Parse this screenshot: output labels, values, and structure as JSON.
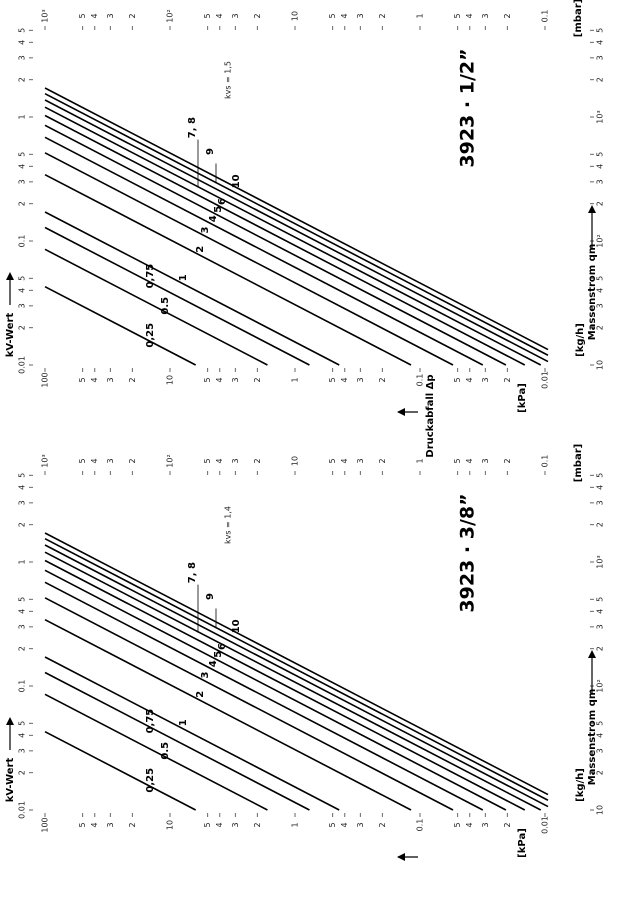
{
  "chart_data": [
    {
      "type": "nomogram",
      "title": "3923 · 1/2”",
      "subtitle": "kvs = 1,5",
      "values": [
        0.25,
        0.5,
        0.75,
        1,
        2,
        3,
        4,
        5,
        6,
        7,
        8,
        9,
        10
      ],
      "value_labels": [
        "0,25",
        "0.5",
        "0,75",
        "1",
        "2",
        "3",
        "4",
        "5",
        "6",
        "7, 8",
        null,
        "9",
        "10"
      ],
      "kv_axis": {
        "label": "kV-Wert",
        "ticks": [
          0.01,
          {
            "value": 0.02,
            "label": "2"
          },
          {
            "value": 0.03,
            "label": "3"
          },
          {
            "value": 0.04,
            "label": "4"
          },
          {
            "value": 0.05,
            "label": "5"
          },
          0.1,
          {
            "value": 0.2,
            "label": "2"
          },
          {
            "value": 0.3,
            "label": "3"
          },
          {
            "value": 0.4,
            "label": "4"
          },
          {
            "value": 0.5,
            "label": "5"
          },
          1,
          2,
          3,
          4,
          5
        ]
      },
      "mass_axis": {
        "unit": "[kg/h]",
        "label": "Massenstrom qm",
        "ticks": [
          10,
          {
            "value": 20,
            "label": "2"
          },
          {
            "value": 30,
            "label": "3"
          },
          {
            "value": 40,
            "label": "4"
          },
          {
            "value": 50,
            "label": "5"
          },
          {
            "value": 100,
            "label": "10²"
          },
          {
            "value": 200,
            "label": "2"
          },
          {
            "value": 300,
            "label": "3"
          },
          {
            "value": 400,
            "label": "4"
          },
          {
            "value": 500,
            "label": "5"
          },
          {
            "value": 1000,
            "label": "10³"
          },
          {
            "value": 2000,
            "label": "2"
          },
          {
            "value": 3000,
            "label": "3"
          },
          {
            "value": 4000,
            "label": "4"
          },
          {
            "value": 5000,
            "label": "5"
          }
        ]
      },
      "dp_axis": {
        "unit": "[kPa]",
        "label": "Druckabfall Δp",
        "ticks": [
          100,
          {
            "value": 50,
            "label": "5"
          },
          {
            "value": 40,
            "label": "4"
          },
          {
            "value": 30,
            "label": "3"
          },
          {
            "value": 20,
            "label": "2"
          },
          10,
          5,
          4,
          3,
          2,
          1,
          {
            "value": 0.5,
            "label": "5"
          },
          {
            "value": 0.4,
            "label": "4"
          },
          {
            "value": 0.3,
            "label": "3"
          },
          {
            "value": 0.2,
            "label": "2"
          },
          0.1,
          {
            "value": 0.05,
            "label": "5"
          },
          {
            "value": 0.04,
            "label": "4"
          },
          {
            "value": 0.03,
            "label": "3"
          },
          {
            "value": 0.02,
            "label": "2"
          },
          0.01
        ]
      },
      "dp_mbar_axis": {
        "unit": "[mbar]",
        "ticks": [
          {
            "value": 1000,
            "label": "10³"
          },
          {
            "value": 500,
            "label": "5"
          },
          {
            "value": 400,
            "label": "4"
          },
          {
            "value": 300,
            "label": "3"
          },
          {
            "value": 200,
            "label": "2"
          },
          {
            "value": 100,
            "label": "10²"
          },
          {
            "value": 50,
            "label": "5"
          },
          {
            "value": 40,
            "label": "4"
          },
          {
            "value": 30,
            "label": "3"
          },
          {
            "value": 20,
            "label": "2"
          },
          10,
          5,
          4,
          3,
          2,
          1,
          {
            "value": 0.5,
            "label": "5"
          },
          {
            "value": 0.4,
            "label": "4"
          },
          {
            "value": 0.3,
            "label": "3"
          },
          {
            "value": 0.2,
            "label": "2"
          },
          0.1
        ]
      }
    },
    {
      "type": "nomogram",
      "title": "3923 · 3/8”",
      "subtitle": "kvs = 1,4",
      "values": [
        0.25,
        0.5,
        0.75,
        1,
        2,
        3,
        4,
        5,
        6,
        7,
        8,
        9,
        10
      ],
      "value_labels": [
        "0,25",
        "0.5",
        "0,75",
        "1",
        "2",
        "3",
        "4",
        "5",
        "6",
        "7, 8",
        null,
        "9",
        "10"
      ],
      "kv_axis": {
        "label": "kV-Wert",
        "ticks": [
          0.01,
          {
            "value": 0.02,
            "label": "2"
          },
          {
            "value": 0.03,
            "label": "3"
          },
          {
            "value": 0.04,
            "label": "4"
          },
          {
            "value": 0.05,
            "label": "5"
          },
          0.1,
          {
            "value": 0.2,
            "label": "2"
          },
          {
            "value": 0.3,
            "label": "3"
          },
          {
            "value": 0.4,
            "label": "4"
          },
          {
            "value": 0.5,
            "label": "5"
          },
          1,
          2,
          3,
          4,
          5
        ]
      },
      "mass_axis": {
        "unit": "[kg/h]",
        "label": "Massenstrom qm",
        "ticks": [
          10,
          {
            "value": 20,
            "label": "2"
          },
          {
            "value": 30,
            "label": "3"
          },
          {
            "value": 40,
            "label": "4"
          },
          {
            "value": 50,
            "label": "5"
          },
          {
            "value": 100,
            "label": "10²"
          },
          {
            "value": 200,
            "label": "2"
          },
          {
            "value": 300,
            "label": "3"
          },
          {
            "value": 400,
            "label": "4"
          },
          {
            "value": 500,
            "label": "5"
          },
          {
            "value": 1000,
            "label": "10³"
          },
          {
            "value": 2000,
            "label": "2"
          },
          {
            "value": 3000,
            "label": "3"
          },
          {
            "value": 4000,
            "label": "4"
          },
          {
            "value": 5000,
            "label": "5"
          }
        ]
      },
      "dp_axis": {
        "unit": "[kPa]",
        "ticks": [
          100,
          {
            "value": 50,
            "label": "5"
          },
          {
            "value": 40,
            "label": "4"
          },
          {
            "value": 30,
            "label": "3"
          },
          {
            "value": 20,
            "label": "2"
          },
          10,
          5,
          4,
          3,
          2,
          1,
          {
            "value": 0.5,
            "label": "5"
          },
          {
            "value": 0.4,
            "label": "4"
          },
          {
            "value": 0.3,
            "label": "3"
          },
          {
            "value": 0.2,
            "label": "2"
          },
          0.1,
          {
            "value": 0.05,
            "label": "5"
          },
          {
            "value": 0.04,
            "label": "4"
          },
          {
            "value": 0.03,
            "label": "3"
          },
          {
            "value": 0.02,
            "label": "2"
          },
          0.01
        ]
      },
      "dp_mbar_axis": {
        "unit": "[mbar]",
        "ticks": [
          {
            "value": 1000,
            "label": "10³"
          },
          {
            "value": 500,
            "label": "5"
          },
          {
            "value": 400,
            "label": "4"
          },
          {
            "value": 300,
            "label": "3"
          },
          {
            "value": 200,
            "label": "2"
          },
          {
            "value": 100,
            "label": "10²"
          },
          {
            "value": 50,
            "label": "5"
          },
          {
            "value": 40,
            "label": "4"
          },
          {
            "value": 30,
            "label": "3"
          },
          {
            "value": 20,
            "label": "2"
          },
          10,
          5,
          4,
          3,
          2,
          1,
          {
            "value": 0.5,
            "label": "5"
          },
          {
            "value": 0.4,
            "label": "4"
          },
          {
            "value": 0.3,
            "label": "3"
          },
          {
            "value": 0.2,
            "label": "2"
          },
          0.1
        ]
      }
    }
  ]
}
